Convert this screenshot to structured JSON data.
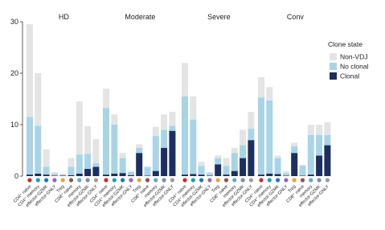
{
  "chart_data": {
    "type": "bar",
    "stacked": true,
    "panels": [
      "HD",
      "Moderate",
      "Severe",
      "Conv"
    ],
    "categories": [
      "CD4⁺ naive",
      "CD4⁺ memory",
      "effector-GZMK",
      "effector-GNLY",
      "Treg",
      "CD8⁺ naive",
      "memory",
      "effector-GZMK",
      "effector-GNLY"
    ],
    "category_colors": [
      "#d62728",
      "#17a2b8",
      "#1f77b4",
      "#9467bd",
      "#e8a33d",
      "#8c564b",
      "#5fa8d3",
      "#7f8fa6",
      "#9e9e9e"
    ],
    "ylim": [
      0,
      30
    ],
    "yticks": [
      0,
      10,
      20,
      30
    ],
    "legend_title": "Clone state",
    "series": [
      {
        "name": "Clonal",
        "color": "#1c2f5e",
        "values": [
          [
            0.3,
            0.5,
            0.3,
            0.1,
            0.1,
            0.2,
            0.5,
            1.4,
            1.8
          ],
          [
            0.3,
            0.5,
            0.6,
            0.2,
            4.5,
            0.1,
            1.0,
            5.5,
            8.8
          ],
          [
            0.3,
            0.4,
            0.3,
            0.1,
            2.3,
            0.3,
            1.0,
            3.5,
            7.0
          ],
          [
            0.3,
            0.5,
            0.4,
            0.1,
            4.5,
            0.1,
            0.3,
            4.0,
            6.0
          ]
        ]
      },
      {
        "name": "No clonal",
        "color": "#a8d4e6",
        "values": [
          [
            11.2,
            9.3,
            1.5,
            0.4,
            0.2,
            1.6,
            3.7,
            2.9,
            0.7
          ],
          [
            12.9,
            9.5,
            2.9,
            0.6,
            1.0,
            1.7,
            6.8,
            3.5,
            1.0
          ],
          [
            15.2,
            10.6,
            1.7,
            0.5,
            1.2,
            1.7,
            3.5,
            2.5,
            2.2
          ],
          [
            15.0,
            14.2,
            3.1,
            0.5,
            1.3,
            1.9,
            7.7,
            4.0,
            2.0
          ]
        ]
      },
      {
        "name": "Non-VDJ",
        "color": "#e4e4e4",
        "values": [
          [
            18.0,
            10.2,
            3.4,
            0.3,
            0.2,
            1.7,
            10.3,
            5.4,
            4.7
          ],
          [
            3.8,
            2.0,
            1.0,
            0.2,
            0.7,
            0.0,
            1.8,
            3.0,
            2.7
          ],
          [
            6.5,
            4.5,
            0.8,
            0.2,
            0.5,
            1.5,
            1.0,
            3.0,
            3.3
          ],
          [
            3.9,
            2.6,
            0.5,
            0.4,
            0.7,
            0.2,
            2.0,
            2.0,
            2.5
          ]
        ]
      }
    ]
  }
}
